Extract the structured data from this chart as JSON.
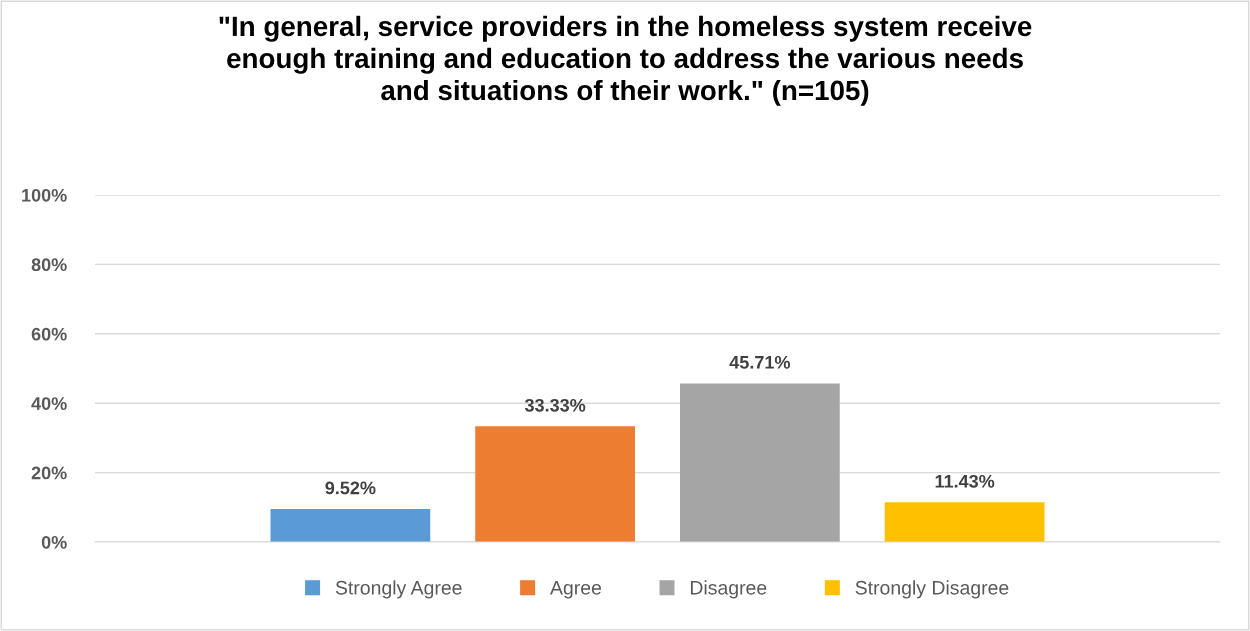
{
  "chart_data": {
    "type": "bar",
    "title": "\"In general, service providers in the homeless system receive\nenough training and education to address the various needs\nand situations of their work.\" (n=105)",
    "categories": [
      null
    ],
    "series": [
      {
        "name": "Strongly Agree",
        "color": "#5b9bd5",
        "values": [
          9.52
        ],
        "value_labels": [
          "9.52%"
        ]
      },
      {
        "name": "Agree",
        "color": "#ed7d31",
        "values": [
          33.33
        ],
        "value_labels": [
          "33.33%"
        ]
      },
      {
        "name": "Disagree",
        "color": "#a5a5a5",
        "values": [
          45.71
        ],
        "value_labels": [
          "45.71%"
        ]
      },
      {
        "name": "Strongly Disagree",
        "color": "#ffc000",
        "values": [
          11.43
        ],
        "value_labels": [
          "11.43%"
        ]
      }
    ],
    "ylim": [
      0,
      100
    ],
    "yticks": [
      {
        "value": 0,
        "label": "0%"
      },
      {
        "value": 20,
        "label": "20%"
      },
      {
        "value": 40,
        "label": "40%"
      },
      {
        "value": 60,
        "label": "60%"
      },
      {
        "value": 80,
        "label": "80%"
      },
      {
        "value": 100,
        "label": "100%"
      }
    ],
    "grid": "y",
    "legend": "bottom"
  }
}
